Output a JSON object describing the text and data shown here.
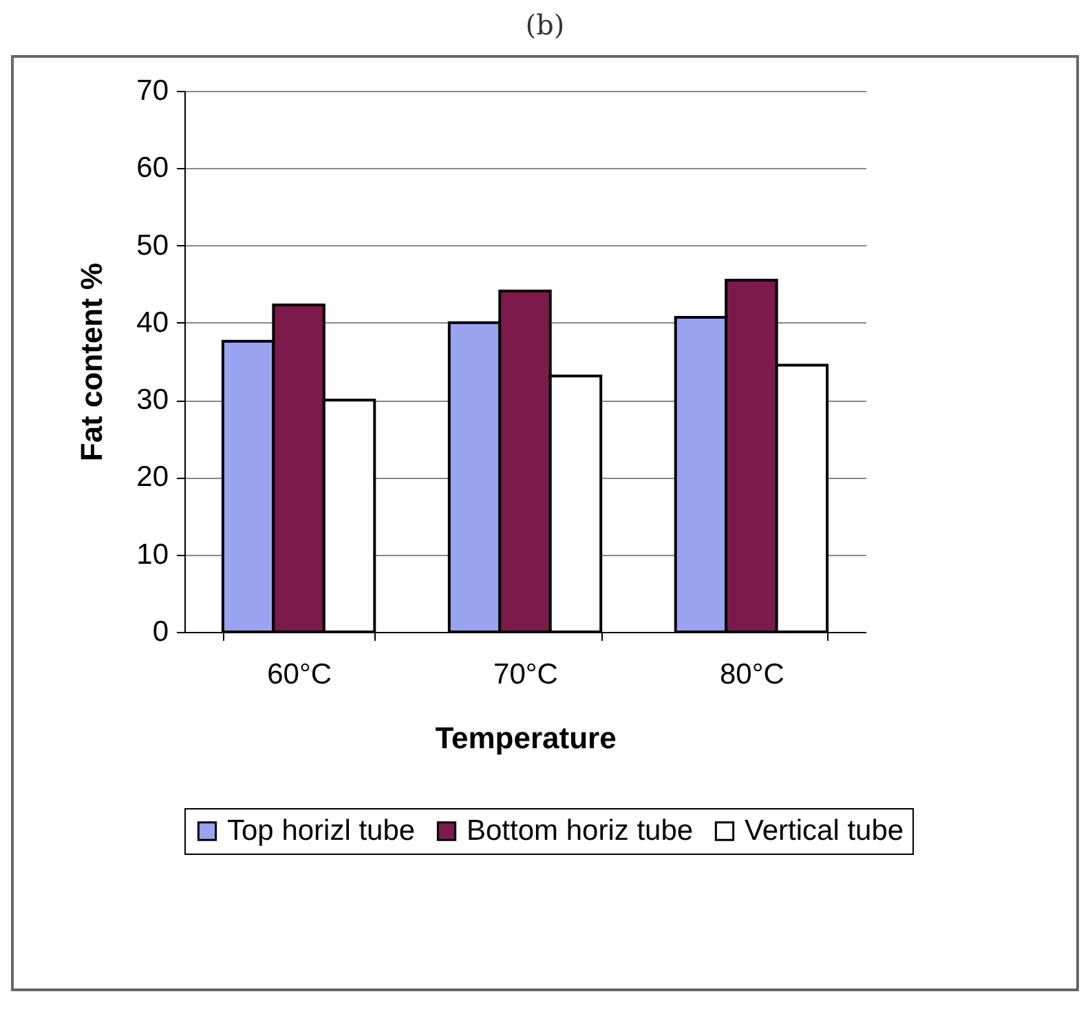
{
  "chart_data": {
    "type": "bar",
    "title": "(b)",
    "xlabel": "Temperature",
    "ylabel": "Fat content  %",
    "categories": [
      "60°C",
      "70°C",
      "80°C"
    ],
    "series": [
      {
        "name": "Top horizl tube",
        "color": "#9aa3f0",
        "values": [
          37.6,
          40.0,
          40.7
        ]
      },
      {
        "name": "Bottom horiz tube",
        "color": "#7d1a4c",
        "values": [
          42.3,
          44.1,
          45.5
        ]
      },
      {
        "name": "Vertical tube",
        "color": "#ffffff",
        "values": [
          30.0,
          33.1,
          34.5
        ]
      }
    ],
    "ylim": [
      0,
      70
    ],
    "yticks": [
      0,
      10,
      20,
      30,
      40,
      50,
      60,
      70
    ],
    "grid": "y",
    "legend": "bottom"
  }
}
